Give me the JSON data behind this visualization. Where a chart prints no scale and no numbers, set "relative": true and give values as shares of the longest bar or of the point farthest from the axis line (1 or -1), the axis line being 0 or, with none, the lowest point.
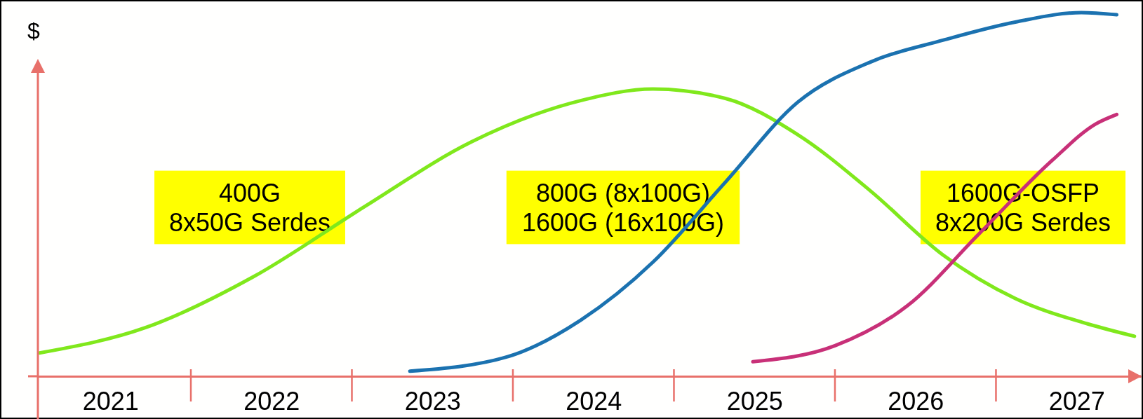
{
  "chart_data": {
    "type": "line",
    "relative": true,
    "ylabel": "$",
    "xlim": [
      2021.05,
      2027.9
    ],
    "xticks": [
      {
        "value": 2021.5,
        "label": "2021"
      },
      {
        "value": 2022.5,
        "label": "2022"
      },
      {
        "value": 2023.5,
        "label": "2023"
      },
      {
        "value": 2024.5,
        "label": "2024"
      },
      {
        "value": 2025.5,
        "label": "2025"
      },
      {
        "value": 2026.5,
        "label": "2026"
      },
      {
        "value": 2027.5,
        "label": "2027"
      }
    ],
    "grid": false,
    "legend": false,
    "marker": "none",
    "line_style": "solid",
    "series": [
      {
        "name": "400G\n8x50G Serdes",
        "color": "#80e81c",
        "x": [
          2021.06,
          2021.72,
          2022.39,
          2023.07,
          2023.74,
          2024.42,
          2024.87,
          2025.32,
          2025.77,
          2026.22,
          2026.67,
          2027.12,
          2027.57,
          2027.86
        ],
        "values": [
          0.064,
          0.134,
          0.274,
          0.464,
          0.644,
          0.758,
          0.79,
          0.764,
          0.664,
          0.51,
          0.334,
          0.214,
          0.144,
          0.11
        ]
      },
      {
        "name": "800G (8x100G)\n1600G (16x100G)",
        "color": "#1b72b0",
        "x": [
          2023.36,
          2023.97,
          2024.42,
          2024.87,
          2025.32,
          2025.77,
          2026.22,
          2026.67,
          2027.12,
          2027.53,
          2027.75
        ],
        "values": [
          0.014,
          0.054,
          0.154,
          0.314,
          0.534,
          0.754,
          0.864,
          0.924,
          0.974,
          1.0,
          0.994
        ]
      },
      {
        "name": "1600G-OSFP\n8x200G Serdes",
        "color": "#c83078",
        "x": [
          2025.49,
          2026.0,
          2026.45,
          2026.9,
          2027.35,
          2027.62,
          2027.75
        ],
        "values": [
          0.04,
          0.084,
          0.194,
          0.394,
          0.594,
          0.694,
          0.72
        ]
      }
    ]
  }
}
